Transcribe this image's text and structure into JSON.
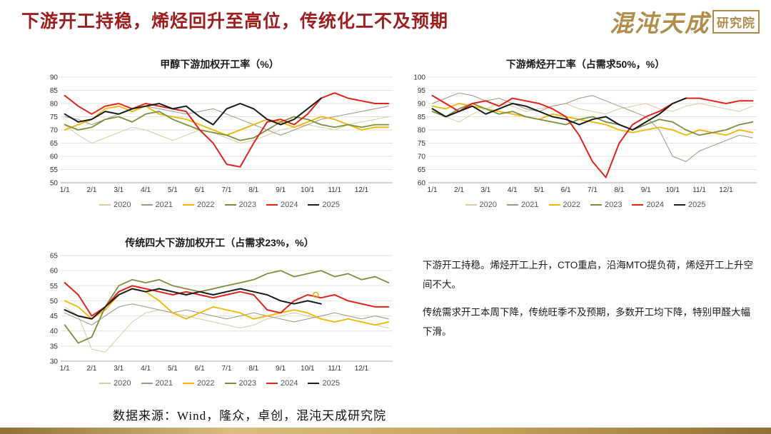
{
  "header": {
    "title": "下游开工持稳，烯烃回升至高位，传统化工不及预期",
    "logo_text": "混沌天成",
    "logo_badge": "研究院"
  },
  "theme": {
    "title_color": "#9C1E1E",
    "brand_gold": "#B08D4A"
  },
  "commentary": {
    "paragraphs": [
      "下游开工持稳。烯烃开工上升，CTO重启，沿海MTO提负荷，烯烃开工上升空间不大。",
      "传统需求开工本周下降，传统旺季不及预期，多数开工均下降，特别甲醛大幅下滑。"
    ]
  },
  "footer": {
    "source": "数据来源：Wind，隆众，卓创，混沌天成研究院"
  },
  "chart_data": [
    {
      "type": "line",
      "title": "甲醇下游加权开工率（%）",
      "ylim": [
        50,
        90
      ],
      "ytick": 5,
      "xlim": [
        0.85,
        13.15
      ],
      "x_start": 1,
      "x_step": 0.5,
      "grid": true,
      "legend_position": "bottom",
      "xtick_labels": [
        "1/1",
        "2/1",
        "3/1",
        "4/1",
        "5/1",
        "6/1",
        "7/1",
        "8/1",
        "9/1",
        "10/1",
        "11/1",
        "12/1"
      ],
      "series": [
        {
          "name": "2020",
          "color": "#D8CBA0",
          "width": 1,
          "values": [
            72,
            68,
            65,
            67,
            69,
            71,
            70,
            68,
            66,
            68,
            70,
            69,
            67,
            65,
            66,
            68,
            70,
            71,
            72,
            71,
            70,
            72,
            73,
            74,
            75
          ]
        },
        {
          "name": "2021",
          "color": "#9E9585",
          "width": 1,
          "values": [
            75,
            74,
            72,
            74,
            76,
            78,
            79,
            78,
            77,
            76,
            77,
            78,
            76,
            74,
            72,
            70,
            68,
            70,
            72,
            74,
            75,
            76,
            77,
            78,
            79
          ]
        },
        {
          "name": "2022",
          "color": "#F2B705",
          "width": 1.8,
          "values": [
            70,
            72,
            74,
            78,
            79,
            77,
            79,
            76,
            75,
            74,
            72,
            70,
            68,
            70,
            72,
            74,
            73,
            71,
            73,
            75,
            74,
            72,
            70,
            71,
            71
          ]
        },
        {
          "name": "2023",
          "color": "#7D8F3E",
          "width": 1.8,
          "values": [
            72,
            70,
            71,
            74,
            75,
            73,
            76,
            77,
            74,
            72,
            70,
            69,
            68,
            66,
            67,
            70,
            73,
            75,
            74,
            72,
            71,
            72,
            71,
            72,
            72
          ]
        },
        {
          "name": "2024",
          "color": "#E2231A",
          "width": 2,
          "values": [
            83,
            79,
            76,
            79,
            80,
            78,
            80,
            79,
            78,
            77,
            70,
            65,
            57,
            56,
            65,
            73,
            74,
            72,
            76,
            82,
            84,
            82,
            81,
            80,
            80
          ]
        },
        {
          "name": "2025",
          "color": "#1A1A1A",
          "width": 2,
          "values": [
            76,
            73,
            74,
            77,
            76,
            78,
            79,
            80,
            78,
            79,
            75,
            72,
            78,
            80,
            78,
            74,
            72,
            74,
            78,
            82
          ]
        }
      ]
    },
    {
      "type": "line",
      "title": "下游烯烃开工率（占需求50%，%）",
      "ylim": [
        60,
        100
      ],
      "ytick": 5,
      "xlim": [
        0.85,
        13.15
      ],
      "x_start": 1,
      "x_step": 0.5,
      "grid": true,
      "legend_position": "bottom",
      "xtick_labels": [
        "1/1",
        "2/1",
        "3/1",
        "4/1",
        "5/1",
        "6/1",
        "7/1",
        "8/1",
        "9/1",
        "10/1",
        "11/1",
        "12/1"
      ],
      "series": [
        {
          "name": "2020",
          "color": "#D8CBA0",
          "width": 1,
          "values": [
            88,
            85,
            83,
            86,
            88,
            90,
            89,
            87,
            88,
            89,
            90,
            88,
            87,
            86,
            88,
            89,
            90,
            88,
            87,
            89,
            90,
            89,
            88,
            87,
            89
          ]
        },
        {
          "name": "2021",
          "color": "#9E9585",
          "width": 1,
          "values": [
            90,
            92,
            94,
            93,
            91,
            92,
            90,
            88,
            87,
            89,
            90,
            92,
            93,
            91,
            89,
            87,
            85,
            80,
            70,
            68,
            72,
            74,
            76,
            78,
            77
          ]
        },
        {
          "name": "2022",
          "color": "#F2B705",
          "width": 1.8,
          "values": [
            89,
            88,
            90,
            89,
            88,
            87,
            86,
            85,
            84,
            86,
            85,
            84,
            83,
            82,
            80,
            79,
            80,
            81,
            80,
            78,
            80,
            79,
            78,
            80,
            79
          ]
        },
        {
          "name": "2023",
          "color": "#7D8F3E",
          "width": 1.8,
          "values": [
            87,
            85,
            88,
            90,
            88,
            86,
            87,
            85,
            84,
            83,
            82,
            84,
            85,
            83,
            82,
            80,
            82,
            84,
            83,
            80,
            78,
            79,
            80,
            82,
            83
          ]
        },
        {
          "name": "2024",
          "color": "#E2231A",
          "width": 2,
          "values": [
            93,
            90,
            87,
            90,
            91,
            89,
            92,
            91,
            90,
            88,
            85,
            78,
            68,
            62,
            75,
            82,
            85,
            87,
            90,
            92,
            92,
            91,
            90,
            91,
            91
          ]
        },
        {
          "name": "2025",
          "color": "#1A1A1A",
          "width": 2,
          "values": [
            88,
            85,
            87,
            89,
            86,
            88,
            90,
            89,
            87,
            85,
            84,
            82,
            84,
            85,
            82,
            80,
            83,
            86,
            90,
            92
          ]
        }
      ]
    },
    {
      "type": "line",
      "title": "传统四大下游加权开工（占需求23%，%）",
      "ylim": [
        30,
        65
      ],
      "ytick": 5,
      "xlim": [
        0.85,
        13.15
      ],
      "x_start": 1,
      "x_step": 0.5,
      "grid": true,
      "legend_position": "bottom",
      "marker": {
        "x": 10.3,
        "y": 52,
        "color": "#E8B004"
      },
      "xtick_labels": [
        "1/1",
        "2/1",
        "3/1",
        "4/1",
        "5/1",
        "6/1",
        "7/1",
        "8/1",
        "9/1",
        "10/1",
        "11/1",
        "12/1"
      ],
      "series": [
        {
          "name": "2020",
          "color": "#D8CBA0",
          "width": 1,
          "values": [
            48,
            45,
            34,
            33,
            38,
            43,
            46,
            47,
            46,
            45,
            44,
            43,
            42,
            41,
            42,
            44,
            45,
            46,
            45,
            44,
            43,
            44,
            43,
            42,
            41
          ]
        },
        {
          "name": "2021",
          "color": "#9E9585",
          "width": 1,
          "values": [
            46,
            44,
            42,
            45,
            48,
            49,
            48,
            47,
            46,
            47,
            46,
            45,
            44,
            45,
            46,
            45,
            44,
            43,
            44,
            45,
            46,
            45,
            44,
            45,
            44
          ]
        },
        {
          "name": "2022",
          "color": "#F2B705",
          "width": 1.8,
          "values": [
            50,
            48,
            44,
            47,
            52,
            54,
            53,
            50,
            46,
            44,
            46,
            48,
            47,
            46,
            44,
            45,
            46,
            47,
            46,
            44,
            43,
            44,
            43,
            42,
            43
          ]
        },
        {
          "name": "2023",
          "color": "#7D8F3E",
          "width": 1.8,
          "values": [
            42,
            36,
            38,
            48,
            55,
            57,
            56,
            57,
            55,
            54,
            53,
            54,
            55,
            56,
            57,
            59,
            60,
            58,
            59,
            60,
            58,
            59,
            57,
            58,
            56
          ]
        },
        {
          "name": "2024",
          "color": "#E2231A",
          "width": 2,
          "values": [
            56,
            52,
            45,
            48,
            53,
            55,
            54,
            53,
            52,
            53,
            52,
            51,
            52,
            53,
            52,
            47,
            46,
            50,
            52,
            51,
            52,
            50,
            49,
            48,
            48
          ]
        },
        {
          "name": "2025",
          "color": "#1A1A1A",
          "width": 2,
          "values": [
            47,
            45,
            44,
            48,
            52,
            54,
            53,
            54,
            53,
            52,
            53,
            52,
            53,
            54,
            53,
            52,
            50,
            49,
            50,
            49
          ]
        }
      ]
    }
  ]
}
